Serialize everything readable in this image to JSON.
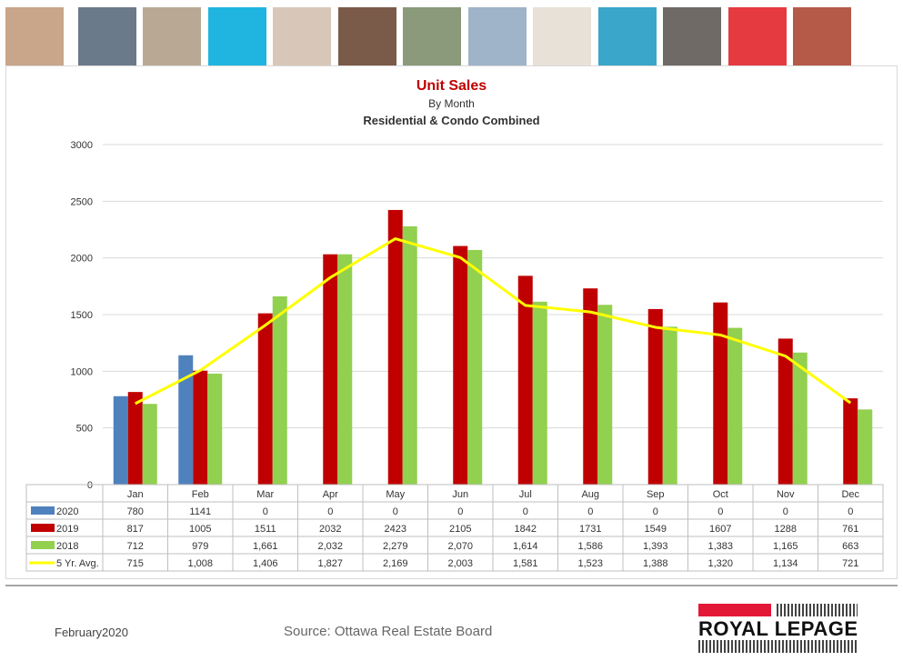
{
  "header": {
    "photos": [
      {
        "name": "family-photo",
        "color": "#c9a58a"
      },
      {
        "name": "phone-hands-photo",
        "color": "#6b7a8a"
      },
      {
        "name": "couple-house-photo",
        "color": "#b9a994"
      },
      {
        "name": "cyan-tile",
        "color": "#1fb5e0"
      },
      {
        "name": "woman-phone-photo",
        "color": "#d8c7b8"
      },
      {
        "name": "couple-photo",
        "color": "#7a5a48"
      },
      {
        "name": "house-photo",
        "color": "#8a9a7a"
      },
      {
        "name": "signing-photo",
        "color": "#9fb3c9"
      },
      {
        "name": "beige-tile",
        "color": "#e7e1d8"
      },
      {
        "name": "pool-child-photo",
        "color": "#3aa6c9"
      },
      {
        "name": "meeting-photo",
        "color": "#6f6a66"
      },
      {
        "name": "red-tile",
        "color": "#e53a3f"
      },
      {
        "name": "father-child-photo",
        "color": "#b55a48"
      }
    ]
  },
  "chart_data": {
    "type": "bar",
    "title": "Unit Sales",
    "subtitle": "By Month",
    "subtitle2": "Residential & Condo Combined",
    "categories": [
      "Jan",
      "Feb",
      "Mar",
      "Apr",
      "May",
      "Jun",
      "Jul",
      "Aug",
      "Sep",
      "Oct",
      "Nov",
      "Dec"
    ],
    "ylim": [
      0,
      3000
    ],
    "yticks": [
      0,
      500,
      1000,
      1500,
      2000,
      2500,
      3000
    ],
    "grid": true,
    "series": [
      {
        "name": "2020",
        "kind": "bar",
        "color": "#4f81bd",
        "values": [
          780,
          1141,
          0,
          0,
          0,
          0,
          0,
          0,
          0,
          0,
          0,
          0
        ],
        "labels": [
          "780",
          "1141",
          "0",
          "0",
          "0",
          "0",
          "0",
          "0",
          "0",
          "0",
          "0",
          "0"
        ]
      },
      {
        "name": "2019",
        "kind": "bar",
        "color": "#c00000",
        "values": [
          817,
          1005,
          1511,
          2032,
          2423,
          2105,
          1842,
          1731,
          1549,
          1607,
          1288,
          761
        ],
        "labels": [
          "817",
          "1005",
          "1511",
          "2032",
          "2423",
          "2105",
          "1842",
          "1731",
          "1549",
          "1607",
          "1288",
          "761"
        ]
      },
      {
        "name": "2018",
        "kind": "bar",
        "color": "#92d050",
        "values": [
          712,
          979,
          1661,
          2032,
          2279,
          2070,
          1614,
          1586,
          1393,
          1383,
          1165,
          663
        ],
        "labels": [
          "712",
          "979",
          "1,661",
          "2,032",
          "2,279",
          "2,070",
          "1,614",
          "1,586",
          "1,393",
          "1,383",
          "1,165",
          "663"
        ]
      },
      {
        "name": "5 Yr. Avg.",
        "kind": "line",
        "color": "#ffff00",
        "values": [
          715,
          1008,
          1406,
          1827,
          2169,
          2003,
          1581,
          1523,
          1388,
          1320,
          1134,
          721
        ],
        "labels": [
          "715",
          "1,008",
          "1,406",
          "1,827",
          "2,169",
          "2,003",
          "1,581",
          "1,523",
          "1,388",
          "1,320",
          "1,134",
          "721"
        ]
      }
    ]
  },
  "footer": {
    "date": "February2020",
    "source": "Source: Ottawa Real Estate Board",
    "logo_text": "ROYAL LEPAGE",
    "logo_color": "#e31837"
  }
}
